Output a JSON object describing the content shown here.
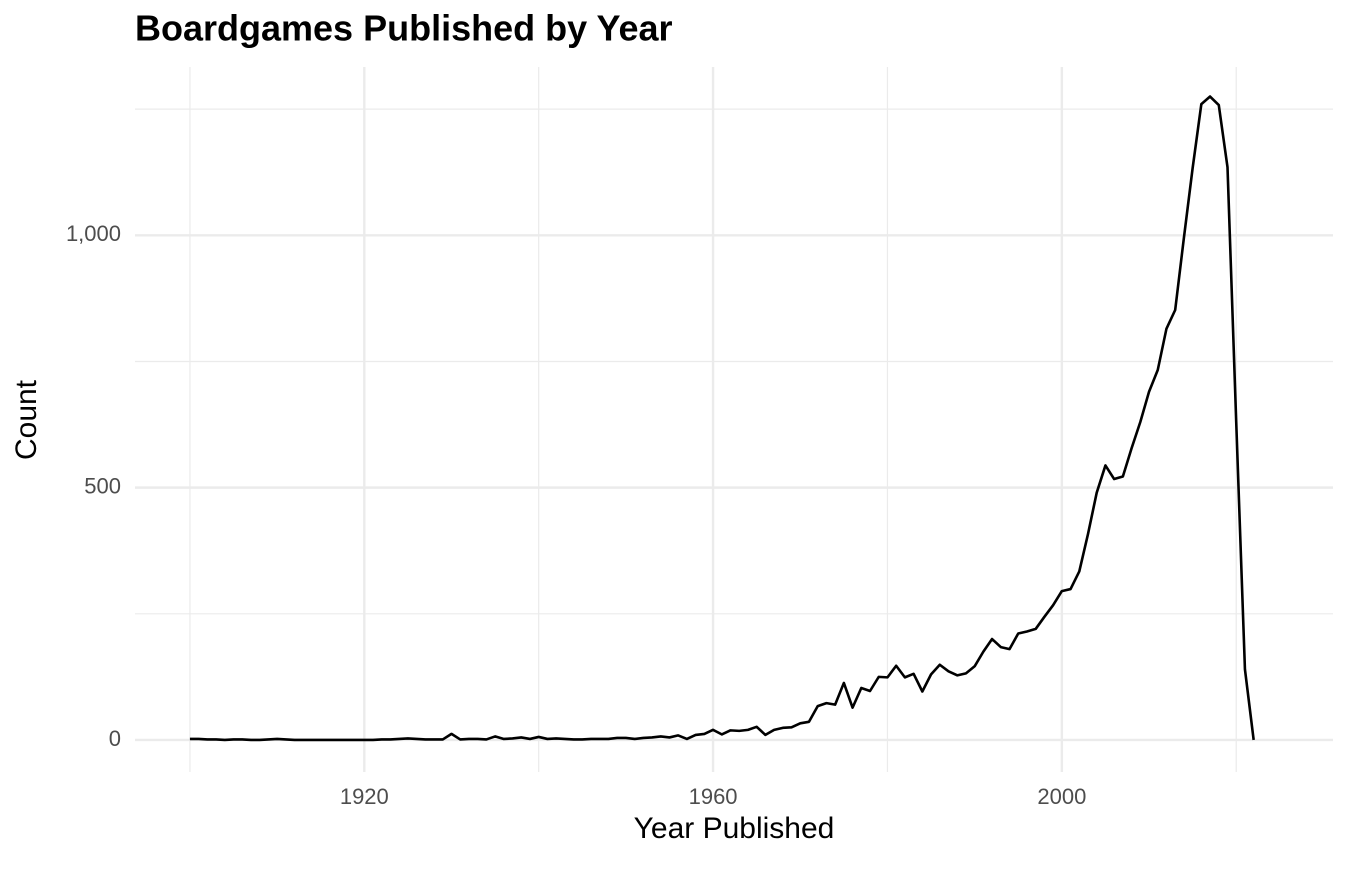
{
  "chart_data": {
    "type": "line",
    "title": "Boardgames Published by Year",
    "x_label": "Year Published",
    "y_label": "Count",
    "x": [
      1900,
      1901,
      1902,
      1903,
      1904,
      1905,
      1906,
      1907,
      1908,
      1909,
      1910,
      1911,
      1912,
      1913,
      1914,
      1915,
      1916,
      1917,
      1918,
      1919,
      1920,
      1921,
      1922,
      1923,
      1924,
      1925,
      1926,
      1927,
      1928,
      1929,
      1930,
      1931,
      1932,
      1933,
      1934,
      1935,
      1936,
      1937,
      1938,
      1939,
      1940,
      1941,
      1942,
      1943,
      1944,
      1945,
      1946,
      1947,
      1948,
      1949,
      1950,
      1951,
      1952,
      1953,
      1954,
      1955,
      1956,
      1957,
      1958,
      1959,
      1960,
      1961,
      1962,
      1963,
      1964,
      1965,
      1966,
      1967,
      1968,
      1969,
      1970,
      1971,
      1972,
      1973,
      1974,
      1975,
      1976,
      1977,
      1978,
      1979,
      1980,
      1981,
      1982,
      1983,
      1984,
      1985,
      1986,
      1987,
      1988,
      1989,
      1990,
      1991,
      1992,
      1993,
      1994,
      1995,
      1996,
      1997,
      1998,
      1999,
      2000,
      2001,
      2002,
      2003,
      2004,
      2005,
      2006,
      2007,
      2008,
      2009,
      2010,
      2011,
      2012,
      2013,
      2014,
      2015,
      2016,
      2017,
      2018,
      2019,
      2020,
      2021,
      2022
    ],
    "series": [
      {
        "name": "Count",
        "color": "#000000",
        "values": [
          2,
          2,
          1,
          1,
          0,
          1,
          1,
          0,
          0,
          1,
          2,
          1,
          0,
          0,
          0,
          0,
          0,
          0,
          0,
          0,
          0,
          0,
          1,
          1,
          2,
          3,
          2,
          1,
          1,
          1,
          12,
          1,
          2,
          2,
          1,
          7,
          2,
          3,
          5,
          2,
          6,
          2,
          3,
          2,
          1,
          1,
          2,
          2,
          2,
          4,
          4,
          2,
          4,
          5,
          7,
          5,
          9,
          2,
          10,
          12,
          20,
          11,
          19,
          18,
          20,
          26,
          10,
          20,
          24,
          25,
          33,
          36,
          67,
          73,
          70,
          113,
          64,
          103,
          97,
          125,
          124,
          147,
          124,
          131,
          96,
          130,
          149,
          136,
          128,
          132,
          146,
          175,
          200,
          184,
          180,
          211,
          215,
          220,
          244,
          267,
          295,
          299,
          334,
          408,
          490,
          544,
          517,
          522,
          578,
          630,
          690,
          733,
          815,
          852,
          995,
          1133,
          1260,
          1275,
          1258,
          1135,
          630,
          140,
          0
        ]
      }
    ],
    "xlim": [
      1893.7,
      2031.1
    ],
    "xticks": [
      1920,
      1960,
      2000
    ],
    "xminorticks": [
      1900,
      1940,
      1980,
      2020
    ],
    "ylim": [
      -63.5,
      1333.5
    ],
    "yticks": [
      0,
      500,
      {
        "value": 1000,
        "label": "1,000"
      }
    ],
    "yminorticks": [
      250,
      750,
      1250
    ],
    "grid": true
  }
}
